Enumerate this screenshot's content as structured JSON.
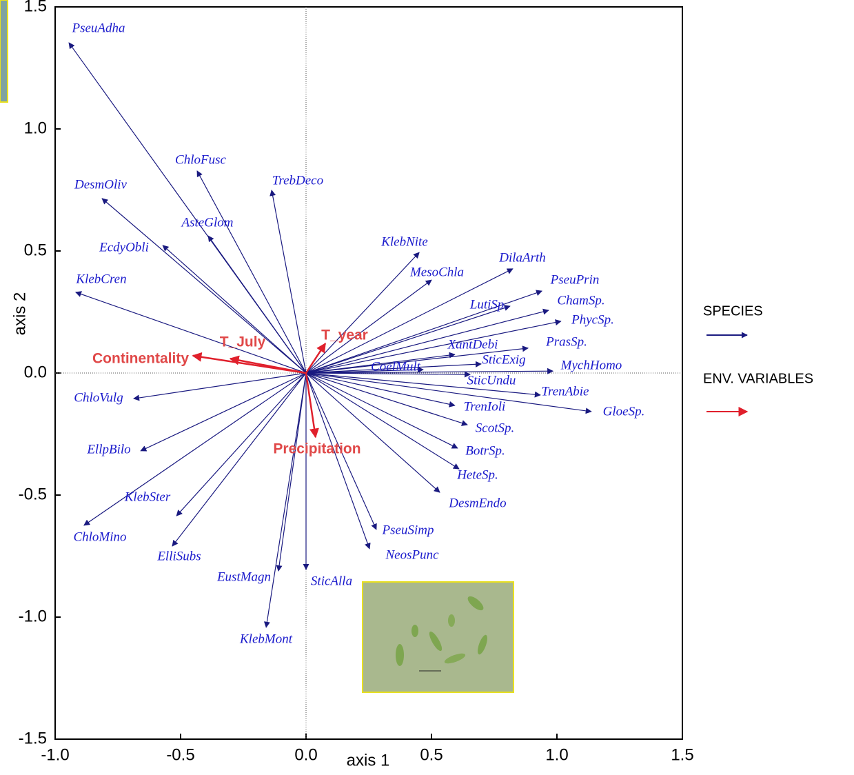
{
  "chart_data": {
    "type": "biplot",
    "x_label": "axis 1",
    "y_label": "axis 2",
    "xlim": [
      -1.0,
      1.5
    ],
    "ylim": [
      -1.5,
      1.5
    ],
    "xticks": [
      {
        "value": -1.0,
        "label": "-1.0"
      },
      {
        "value": -0.5,
        "label": "-0.5"
      },
      {
        "value": 0.0,
        "label": "0.0"
      },
      {
        "value": 0.5,
        "label": "0.5"
      },
      {
        "value": 1.0,
        "label": "1.0"
      },
      {
        "value": 1.5,
        "label": "1.5"
      }
    ],
    "yticks": [
      {
        "value": -1.5,
        "label": "-1.5"
      },
      {
        "value": -1.0,
        "label": "-1.0"
      },
      {
        "value": -0.5,
        "label": "-0.5"
      },
      {
        "value": 0.0,
        "label": "0.0"
      },
      {
        "value": 0.5,
        "label": "0.5"
      },
      {
        "value": 1.0,
        "label": "1.0"
      },
      {
        "value": 1.5,
        "label": "1.5"
      }
    ],
    "zero_lines": true,
    "series": [
      {
        "name": "SPECIES",
        "color": "#1a1a80",
        "labels": [
          "PseuAdha",
          "ChloFusc",
          "DesmOliv",
          "TrebDeco",
          "AsteGlom",
          "EcdyObli",
          "KlebCren",
          "KlebNite",
          "MesoChla",
          "DilaArth",
          "PseuPrin",
          "ChamSp.",
          "LutiSp.",
          "PhycSp.",
          "PrasSp.",
          "XantDebi",
          "SticExig",
          "MychHomo",
          "CoelMult",
          "SticUndu",
          "TrenAbie",
          "GloeSp.",
          "TrenIoli",
          "ScotSp.",
          "BotrSp.",
          "HeteSp.",
          "DesmEndo",
          "PseuSimp",
          "NeosPunc",
          "SticAlla",
          "EustMagn",
          "KlebMont",
          "ElliSubs",
          "KlebSter",
          "ChloMino",
          "EllpBilo",
          "ChloVulg"
        ],
        "x": [
          -0.945,
          -0.434,
          -0.813,
          -0.137,
          -0.39,
          -0.571,
          -0.918,
          0.451,
          0.5,
          0.824,
          0.94,
          0.967,
          0.813,
          1.016,
          0.885,
          0.593,
          0.698,
          0.984,
          0.467,
          0.654,
          0.934,
          1.137,
          0.593,
          0.643,
          0.604,
          0.61,
          0.533,
          0.28,
          0.253,
          0.0,
          -0.11,
          -0.159,
          -0.533,
          -0.516,
          -0.885,
          -0.659,
          -0.687
        ],
        "y": [
          1.353,
          0.828,
          0.715,
          0.749,
          0.562,
          0.523,
          0.331,
          0.494,
          0.381,
          0.427,
          0.336,
          0.257,
          0.274,
          0.212,
          0.102,
          0.076,
          0.037,
          0.008,
          0.014,
          -0.006,
          -0.09,
          -0.158,
          -0.133,
          -0.212,
          -0.308,
          -0.393,
          -0.489,
          -0.641,
          -0.72,
          -0.805,
          -0.811,
          -1.042,
          -0.709,
          -0.585,
          -0.624,
          -0.319,
          -0.105
        ]
      },
      {
        "name": "ENV. VARIABLES",
        "color": "#e0202c",
        "labels": [
          "Continentality",
          "T_July",
          "T_year",
          "Precipitation"
        ],
        "x": [
          -0.451,
          -0.302,
          0.077,
          0.038
        ],
        "y": [
          0.071,
          0.059,
          0.121,
          -0.263
        ]
      }
    ]
  }
}
